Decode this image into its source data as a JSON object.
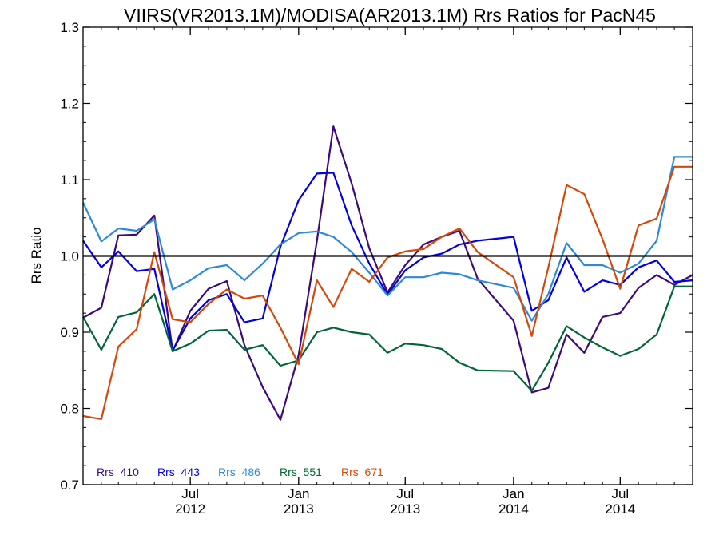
{
  "chart_data": {
    "type": "line",
    "title": "VIIRS(VR2013.1M)/MODISA(AR2013.1M)  Rrs Ratios for PacN45",
    "xlabel": "",
    "ylabel": "Rrs Ratio",
    "ylim": [
      0.7,
      1.3
    ],
    "xlim": [
      "2012-01-01",
      "2014-11-01"
    ],
    "yticks": [
      "0.7",
      "0.8",
      "0.9",
      "1.0",
      "1.1",
      "1.2",
      "1.3"
    ],
    "xticks": [
      {
        "date": "2012-07-01",
        "top": "Jul",
        "bottom": "2012"
      },
      {
        "date": "2013-01-01",
        "top": "Jan",
        "bottom": "2013"
      },
      {
        "date": "2013-07-01",
        "top": "Jul",
        "bottom": "2013"
      },
      {
        "date": "2014-01-01",
        "top": "Jan",
        "bottom": "2014"
      },
      {
        "date": "2014-07-01",
        "top": "Jul",
        "bottom": "2014"
      }
    ],
    "reference_line": 1.0,
    "legend_position": "bottom-left",
    "x": [
      "2012-01-01",
      "2012-02-01",
      "2012-03-01",
      "2012-04-01",
      "2012-05-01",
      "2012-06-01",
      "2012-07-01",
      "2012-08-01",
      "2012-09-01",
      "2012-10-01",
      "2012-11-01",
      "2012-12-01",
      "2013-01-01",
      "2013-02-01",
      "2013-03-01",
      "2013-04-01",
      "2013-05-01",
      "2013-06-01",
      "2013-07-01",
      "2013-08-01",
      "2013-09-01",
      "2013-10-01",
      "2013-11-01",
      "2014-01-01",
      "2014-02-01",
      "2014-03-01",
      "2014-04-01",
      "2014-05-01",
      "2014-06-01",
      "2014-07-01",
      "2014-08-01",
      "2014-09-01",
      "2014-10-01",
      "2014-11-01"
    ],
    "series": [
      {
        "name": "Rrs_410",
        "color": "#3d0a7a",
        "values": [
          0.919,
          0.932,
          1.027,
          1.028,
          1.053,
          0.875,
          0.928,
          0.957,
          0.967,
          0.883,
          0.828,
          0.785,
          0.87,
          1.02,
          1.17,
          1.095,
          1.01,
          0.952,
          0.988,
          1.015,
          1.025,
          1.033,
          0.97,
          0.915,
          0.821,
          0.827,
          0.897,
          0.873,
          0.92,
          0.925,
          0.958,
          0.975,
          0.962,
          0.975
        ]
      },
      {
        "name": "Rrs_443",
        "color": "#0000e0",
        "values": [
          1.02,
          0.985,
          1.006,
          0.98,
          0.983,
          0.876,
          0.918,
          0.942,
          0.95,
          0.913,
          0.918,
          1.012,
          1.073,
          1.108,
          1.109,
          1.04,
          0.99,
          0.949,
          0.981,
          0.998,
          1.003,
          1.015,
          1.02,
          1.025,
          0.928,
          0.942,
          0.998,
          0.953,
          0.968,
          0.962,
          0.985,
          0.994,
          0.966,
          0.968
        ]
      },
      {
        "name": "Rrs_486",
        "color": "#2e8ad6",
        "values": [
          1.07,
          1.019,
          1.036,
          1.033,
          1.048,
          0.956,
          0.968,
          0.984,
          0.988,
          0.968,
          0.99,
          1.015,
          1.03,
          1.032,
          1.025,
          1.005,
          0.978,
          0.948,
          0.972,
          0.972,
          0.978,
          0.976,
          0.968,
          0.958,
          0.915,
          0.95,
          1.017,
          0.988,
          0.988,
          0.978,
          0.99,
          1.02,
          1.13,
          1.13
        ]
      },
      {
        "name": "Rrs_551",
        "color": "#006633",
        "values": [
          0.92,
          0.877,
          0.92,
          0.926,
          0.95,
          0.875,
          0.885,
          0.902,
          0.903,
          0.877,
          0.883,
          0.856,
          0.863,
          0.9,
          0.906,
          0.9,
          0.897,
          0.873,
          0.885,
          0.883,
          0.878,
          0.86,
          0.85,
          0.849,
          0.823,
          0.86,
          0.908,
          0.893,
          0.88,
          0.869,
          0.878,
          0.897,
          0.96,
          0.96
        ]
      },
      {
        "name": "Rrs_671",
        "color": "#d4480a",
        "values": [
          0.79,
          0.786,
          0.881,
          0.904,
          1.005,
          0.917,
          0.913,
          0.937,
          0.956,
          0.944,
          0.948,
          0.906,
          0.858,
          0.968,
          0.933,
          0.983,
          0.966,
          0.998,
          1.006,
          1.009,
          1.025,
          1.036,
          1.005,
          0.972,
          0.895,
          0.985,
          1.093,
          1.081,
          1.022,
          0.957,
          1.04,
          1.049,
          1.117,
          1.117
        ]
      }
    ]
  }
}
